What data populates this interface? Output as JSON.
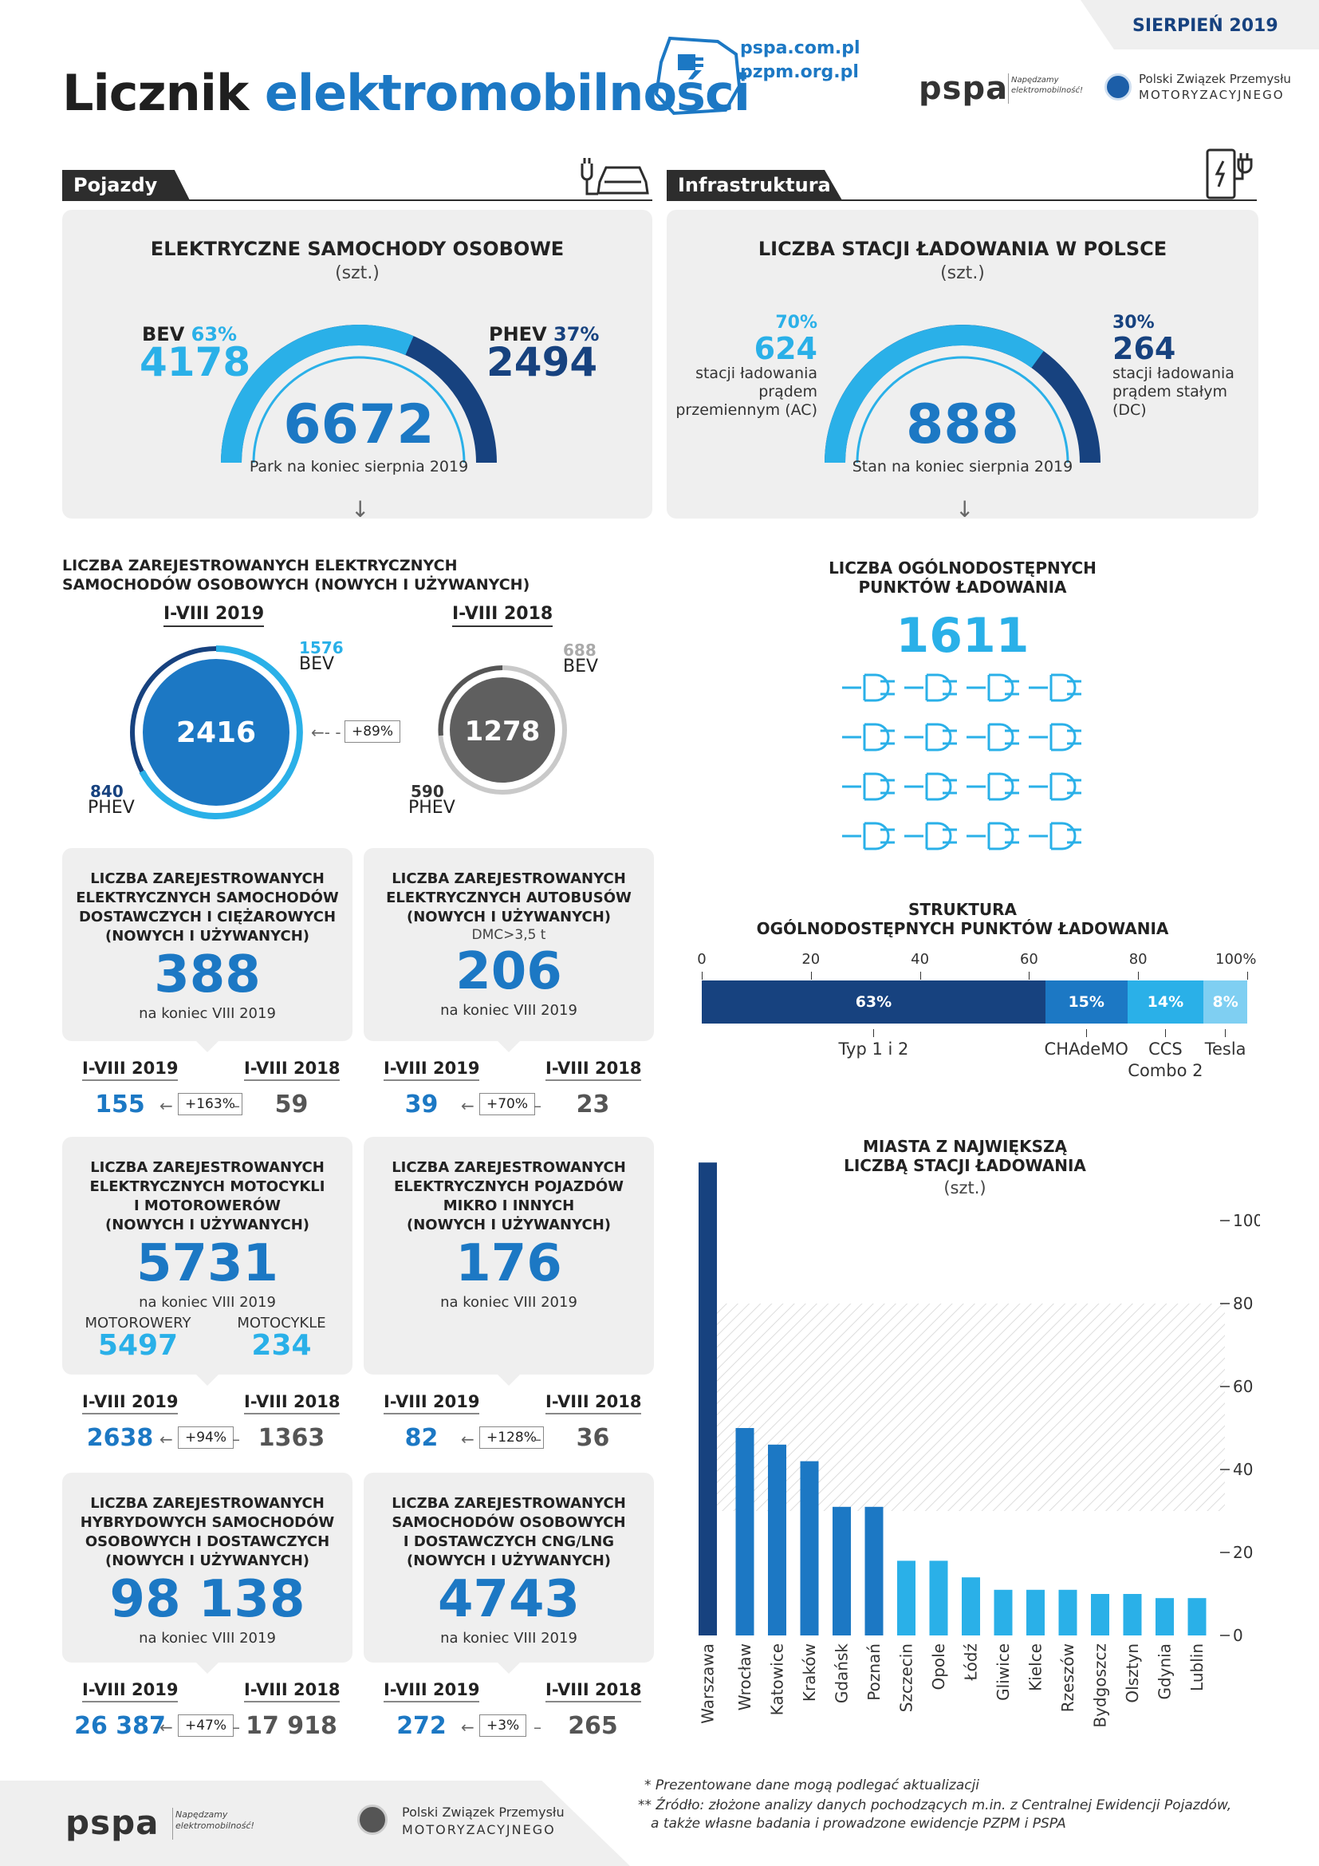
{
  "header": {
    "date": "SIERPIEŃ 2019",
    "title_a": "Licznik",
    "title_b": "elektromobilności",
    "url1": "pspa.com.pl",
    "url2": "pzpm.org.pl",
    "pspa": "pspa",
    "pspa_tag": "Napędzamy elektromobilność!",
    "pzpm1": "Polski Związek Przemysłu",
    "pzpm2": "MOTORYZACYJNEGO"
  },
  "sections": {
    "vehicles": "Pojazdy",
    "infra": "Infrastruktura"
  },
  "cars": {
    "title": "ELEKTRYCZNE SAMOCHODY OSOBOWE",
    "unit": "(szt.)",
    "bev_label": "BEV",
    "bev_pct": "63%",
    "bev_val": "4178",
    "phev_label": "PHEV",
    "phev_pct": "37%",
    "phev_val": "2494",
    "total": "6672",
    "note": "Park na koniec sierpnia 2019",
    "bev_share": 0.63
  },
  "stations": {
    "title": "LICZBA STACJI ŁADOWANIA W POLSCE",
    "unit": "(szt.)",
    "ac_pct": "70%",
    "ac_val": "624",
    "ac_desc1": "stacji ładowania",
    "ac_desc2": "prądem",
    "ac_desc3": "przemiennym (AC)",
    "dc_pct": "30%",
    "dc_val": "264",
    "dc_desc1": "stacji ładowania",
    "dc_desc2": "prądem stałym",
    "dc_desc3": "(DC)",
    "total": "888",
    "note": "Stan na koniec sierpnia 2019",
    "ac_share": 0.7
  },
  "registered": {
    "title1": "LICZBA ZAREJESTROWANYCH ELEKTRYCZNYCH",
    "title2": "SAMOCHODÓW OSOBOWYCH (NOWYCH I UŻYWANYCH)",
    "y2019": "I-VIII 2019",
    "y2018": "I-VIII 2018",
    "total2019": "2416",
    "bev2019": "1576",
    "phev2019": "840",
    "total2018": "1278",
    "bev2018": "688",
    "phev2018": "590",
    "bev": "BEV",
    "phev": "PHEV",
    "change": "+89%"
  },
  "points": {
    "title1": "LICZBA OGÓLNODOSTĘPNYCH",
    "title2": "PUNKTÓW ŁADOWANIA",
    "total": "1611"
  },
  "boxes": [
    {
      "t1": "LICZBA ZAREJESTROWANYCH",
      "t2": "ELEKTRYCZNYCH SAMOCHODÓW",
      "t3": "DOSTAWCZYCH I CIĘŻAROWYCH",
      "t4": "(NOWYCH I UŻYWANYCH)",
      "sub": "",
      "value": "388",
      "note": "na koniec VIII 2019",
      "y1": "I-VIII 2019",
      "y2": "I-VIII 2018",
      "v1": "155",
      "v2": "59",
      "change": "+163%"
    },
    {
      "t1": "LICZBA ZAREJESTROWANYCH",
      "t2": "ELEKTRYCZNYCH AUTOBUSÓW",
      "t3": "(NOWYCH I UŻYWANYCH)",
      "t4": "",
      "sub": "DMC>3,5 t",
      "value": "206",
      "note": "na koniec VIII 2019",
      "y1": "I-VIII 2019",
      "y2": "I-VIII 2018",
      "v1": "39",
      "v2": "23",
      "change": "+70%"
    },
    {
      "t1": "LICZBA ZAREJESTROWANYCH",
      "t2": "ELEKTRYCZNYCH MOTOCYKLI",
      "t3": "I MOTOROWERÓW",
      "t4": "(NOWYCH I UŻYWANYCH)",
      "sub": "",
      "value": "5731",
      "note": "na koniec VIII 2019",
      "y1": "I-VIII 2019",
      "y2": "I-VIII 2018",
      "v1": "2638",
      "v2": "1363",
      "change": "+94%",
      "extra": {
        "l1": "MOTOROWERY",
        "v1": "5497",
        "l2": "MOTOCYKLE",
        "v2": "234"
      }
    },
    {
      "t1": "LICZBA ZAREJESTROWANYCH",
      "t2": "ELEKTRYCZNYCH POJAZDÓW",
      "t3": "MIKRO I INNYCH",
      "t4": "(NOWYCH I UŻYWANYCH)",
      "sub": "",
      "value": "176",
      "note": "na koniec VIII 2019",
      "y1": "I-VIII 2019",
      "y2": "I-VIII 2018",
      "v1": "82",
      "v2": "36",
      "change": "+128%"
    },
    {
      "t1": "LICZBA ZAREJESTROWANYCH",
      "t2": "HYBRYDOWYCH SAMOCHODÓW",
      "t3": "OSOBOWYCH I DOSTAWCZYCH",
      "t4": "(NOWYCH I UŻYWANYCH)",
      "sub": "",
      "value": "98 138",
      "note": "na koniec VIII 2019",
      "y1": "I-VIII 2019",
      "y2": "I-VIII 2018",
      "v1": "26 387",
      "v2": "17 918",
      "change": "+47%"
    },
    {
      "t1": "LICZBA ZAREJESTROWANYCH",
      "t2": "SAMOCHODÓW OSOBOWYCH",
      "t3": "I DOSTAWCZYCH CNG/LNG",
      "t4": "(NOWYCH I UŻYWANYCH)",
      "sub": "",
      "value": "4743",
      "note": "na koniec VIII 2019",
      "y1": "I-VIII 2019",
      "y2": "I-VIII 2018",
      "v1": "272",
      "v2": "265",
      "change": "+3%"
    }
  ],
  "structure": {
    "title1": "STRUKTURA",
    "title2": "OGÓLNODOSTĘPNYCH PUNKTÓW ŁADOWANIA",
    "ticks": [
      "0",
      "20",
      "40",
      "60",
      "80",
      "100%"
    ],
    "segments": [
      {
        "label": "63%",
        "value": 63,
        "name": "Typ 1 i 2",
        "color": "#17427f"
      },
      {
        "label": "15%",
        "value": 15,
        "name": "CHAdeMO",
        "color": "#1c78c4"
      },
      {
        "label": "14%",
        "value": 14,
        "name": "CCS",
        "name2": "Combo 2",
        "color": "#2ab0e8"
      },
      {
        "label": "8%",
        "value": 8,
        "name": "Tesla",
        "color": "#7fcff2"
      }
    ]
  },
  "chart_data": {
    "type": "bar",
    "title": "MIASTA Z NAJWIĘKSZĄ LICZBĄ STACJI ŁADOWANIA",
    "subtitle": "(szt.)",
    "categories": [
      "Warszawa",
      "Wrocław",
      "Katowice",
      "Kraków",
      "Gdańsk",
      "Poznań",
      "Szczecin",
      "Opole",
      "Łódź",
      "Gliwice",
      "Kielce",
      "Rzeszów",
      "Bydgoszcz",
      "Olsztyn",
      "Gdynia",
      "Lublin"
    ],
    "values": [
      114,
      50,
      46,
      42,
      31,
      31,
      18,
      18,
      14,
      11,
      11,
      11,
      10,
      10,
      9,
      9
    ],
    "colors": [
      "#17427f",
      "#1c78c4",
      "#1c78c4",
      "#1c78c4",
      "#1c78c4",
      "#1c78c4",
      "#2ab0e8",
      "#2ab0e8",
      "#2ab0e8",
      "#2ab0e8",
      "#2ab0e8",
      "#2ab0e8",
      "#2ab0e8",
      "#2ab0e8",
      "#2ab0e8",
      "#2ab0e8"
    ],
    "yticks": [
      "0",
      "20",
      "40",
      "60",
      "80",
      "100"
    ],
    "ylim": [
      0,
      120
    ]
  },
  "footer": {
    "n1": "* Prezentowane dane mogą podlegać aktualizacji",
    "n2": "** Źródło: złożone analizy danych pochodzących m.in. z Centralnej Ewidencji Pojazdów,",
    "n3": "a także własne badania i prowadzone ewidencje PZPM i PSPA",
    "pspa": "pspa",
    "pspa_tag": "Napędzamy elektromobilność!",
    "pzpm1": "Polski Związek Przemysłu",
    "pzpm2": "MOTORYZACYJNEGO"
  }
}
